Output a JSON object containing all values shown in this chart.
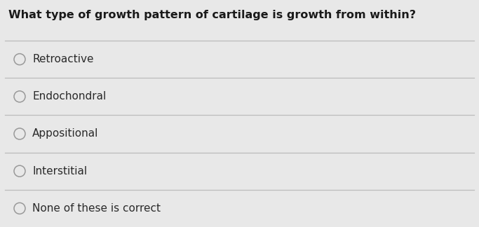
{
  "question": "What type of growth pattern of cartilage is growth from within?",
  "options": [
    "Retroactive",
    "Endochondral",
    "Appositional",
    "Interstitial",
    "None of these is correct"
  ],
  "bg_color": "#e8e8e8",
  "question_fontsize": 11.5,
  "option_fontsize": 11,
  "question_color": "#1a1a1a",
  "option_color": "#2a2a2a",
  "line_color": "#bbbbbb",
  "circle_edge_color": "#999999"
}
